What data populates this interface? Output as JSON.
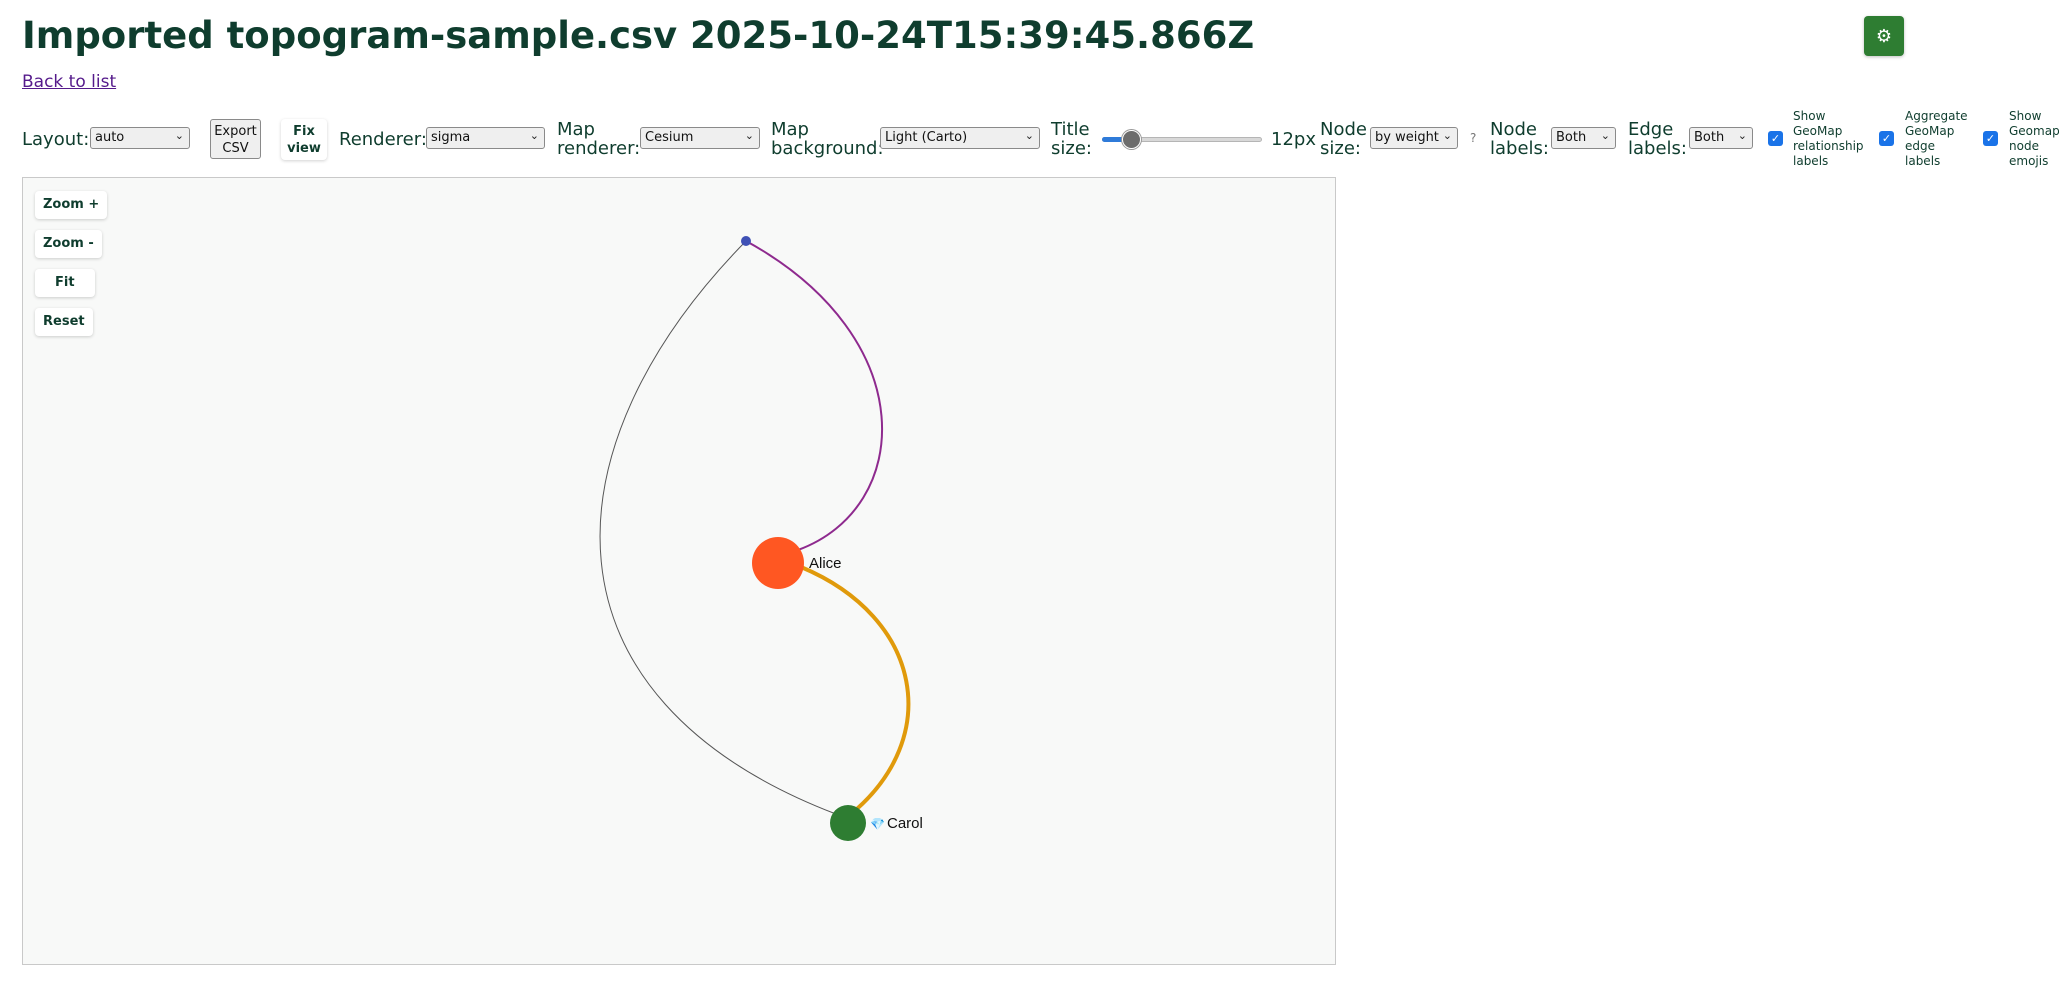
{
  "header": {
    "title": "Imported topogram-sample.csv 2025-10-24T15:39:45.866Z",
    "settings_icon": "gear-icon",
    "settings_glyph": "⚙",
    "back_link": "Back to list"
  },
  "toolbar": {
    "layout": {
      "label": "Layout:",
      "value": "auto"
    },
    "export_csv": {
      "line1": "Export",
      "line2": "CSV"
    },
    "fix_view": {
      "line1": "Fix",
      "line2": "view"
    },
    "renderer": {
      "label": "Renderer:",
      "value": "sigma"
    },
    "map_renderer": {
      "line1": "Map",
      "line2": "renderer:",
      "value": "Cesium"
    },
    "map_background": {
      "line1": "Map",
      "line2": "background:",
      "value": "Light (Carto)"
    },
    "title_size": {
      "line1": "Title",
      "line2": "size:",
      "value": "12px",
      "fraction": 0.12
    },
    "node_size": {
      "line1": "Node",
      "line2": "size:",
      "value": "by weight",
      "help": "?"
    },
    "node_labels": {
      "line1": "Node",
      "line2": "labels:",
      "value": "Both"
    },
    "edge_labels": {
      "line1": "Edge",
      "line2": "labels:",
      "value": "Both"
    },
    "checkboxes": [
      {
        "lines": [
          "Show",
          "GeoMap",
          "relationship",
          "labels"
        ],
        "checked": true
      },
      {
        "lines": [
          "Aggregate",
          "GeoMap",
          "edge",
          "labels"
        ],
        "checked": true
      },
      {
        "lines": [
          "Show",
          "Geomap",
          "node",
          "emojis"
        ],
        "checked": true
      }
    ]
  },
  "graph": {
    "zoom_in": "Zoom +",
    "zoom_out": "Zoom -",
    "fit": "Fit",
    "reset": "Reset",
    "nodes": [
      {
        "id": "top",
        "label": "",
        "color": "#3f51b5"
      },
      {
        "id": "alice",
        "label": "Alice",
        "color": "#ff5722"
      },
      {
        "id": "carol",
        "label": "Carol",
        "color": "#2e7d32",
        "emoji": "💎"
      }
    ],
    "edges": [
      {
        "from": "top",
        "to": "alice",
        "color": "#8e2a8e"
      },
      {
        "from": "alice",
        "to": "carol",
        "color": "#e09a0b"
      },
      {
        "from": "top",
        "to": "carol",
        "color": "#555555"
      }
    ]
  },
  "colors": {
    "accent": "#2e7d32",
    "title": "#0f3d2e",
    "link": "#551a8b",
    "checkbox": "#1a73e8"
  }
}
